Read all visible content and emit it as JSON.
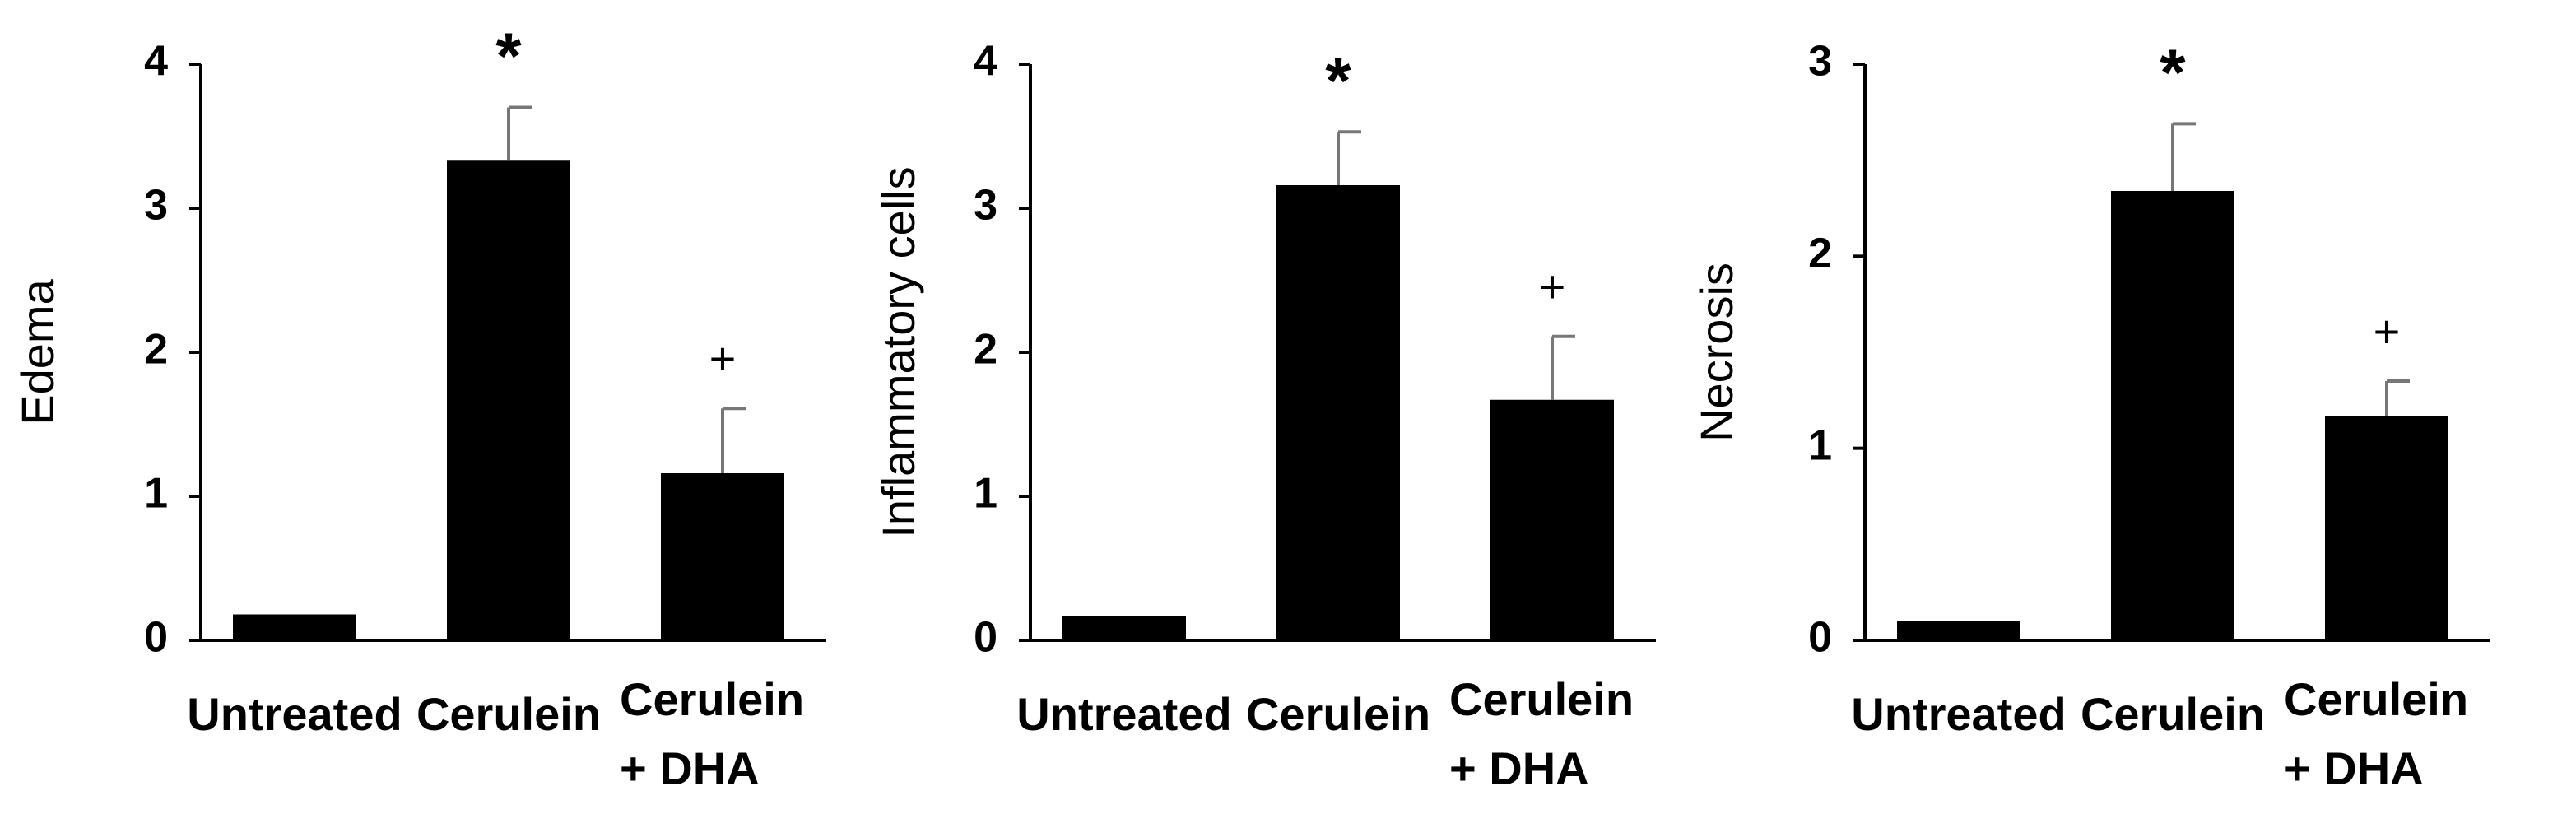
{
  "chart_data": [
    {
      "type": "bar",
      "ylabel": "Edema",
      "categories": [
        "Untreated",
        "Cerulein",
        "Cerulein + DHA"
      ],
      "values": [
        0.18,
        3.33,
        1.16
      ],
      "errors": [
        null,
        0.37,
        0.45
      ],
      "annotations": [
        null,
        "*",
        "+"
      ],
      "color": "#000000",
      "ylim": [
        0,
        4
      ],
      "yticks": [
        0,
        1,
        2,
        3,
        4
      ]
    },
    {
      "type": "bar",
      "ylabel": "Inflammatory  cells",
      "categories": [
        "Untreated",
        "Cerulein",
        "Cerulein + DHA"
      ],
      "values": [
        0.17,
        3.16,
        1.67
      ],
      "errors": [
        null,
        0.37,
        0.44
      ],
      "annotations": [
        null,
        "*",
        "+"
      ],
      "color": "#000000",
      "ylim": [
        0,
        4
      ],
      "yticks": [
        0,
        1,
        2,
        3,
        4
      ]
    },
    {
      "type": "bar",
      "ylabel": "Necrosis",
      "categories": [
        "Untreated",
        "Cerulein",
        "Cerulein + DHA"
      ],
      "values": [
        0.1,
        2.34,
        1.17
      ],
      "errors": [
        null,
        0.35,
        0.18
      ],
      "annotations": [
        null,
        "*",
        "+"
      ],
      "color": "#000000",
      "ylim": [
        0,
        3
      ],
      "yticks": [
        0,
        1,
        2,
        3
      ]
    }
  ]
}
